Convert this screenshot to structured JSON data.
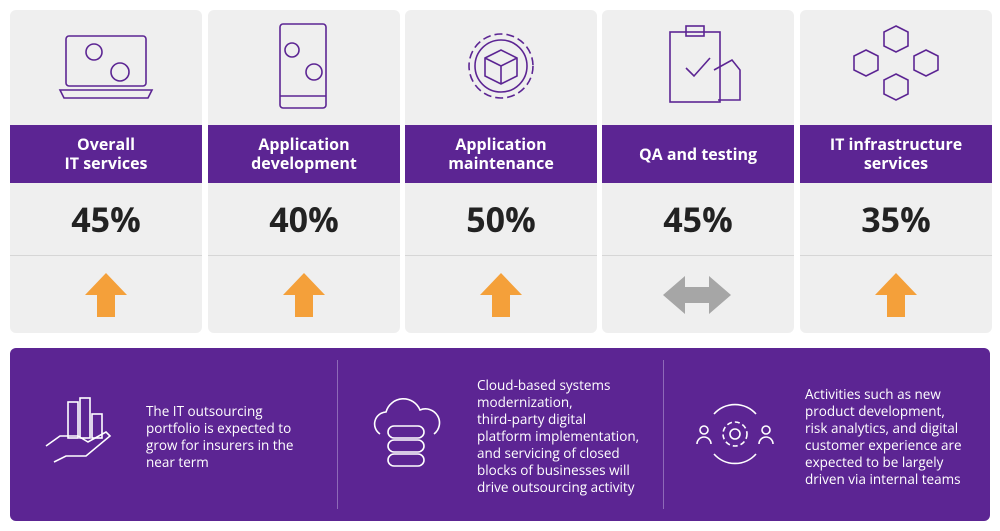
{
  "cards": [
    {
      "label": [
        "Overall",
        "IT services"
      ],
      "value": "45%"
    },
    {
      "label": [
        "Application",
        "development"
      ],
      "value": "40%"
    },
    {
      "label": [
        "Application",
        "maintenance"
      ],
      "value": "50%"
    },
    {
      "label": [
        "QA and testing"
      ],
      "value": "45%"
    },
    {
      "label": [
        "IT infrastructure",
        "services"
      ],
      "value": "35%"
    }
  ],
  "notes": [
    {
      "lines": [
        "The IT outsourcing",
        "portfolio is expected to",
        "grow for insurers in the",
        "near term"
      ]
    },
    {
      "lines": [
        "Cloud-based systems",
        "modernization,",
        "third-party digital",
        "platform implementation,",
        "and servicing of closed",
        "blocks of businesses will",
        "drive outsourcing activity"
      ]
    },
    {
      "lines": [
        "Activities such as new",
        "product development,",
        "risk analytics, and digital",
        "customer experience are",
        "expected to be largely",
        "driven via internal teams"
      ]
    }
  ]
}
